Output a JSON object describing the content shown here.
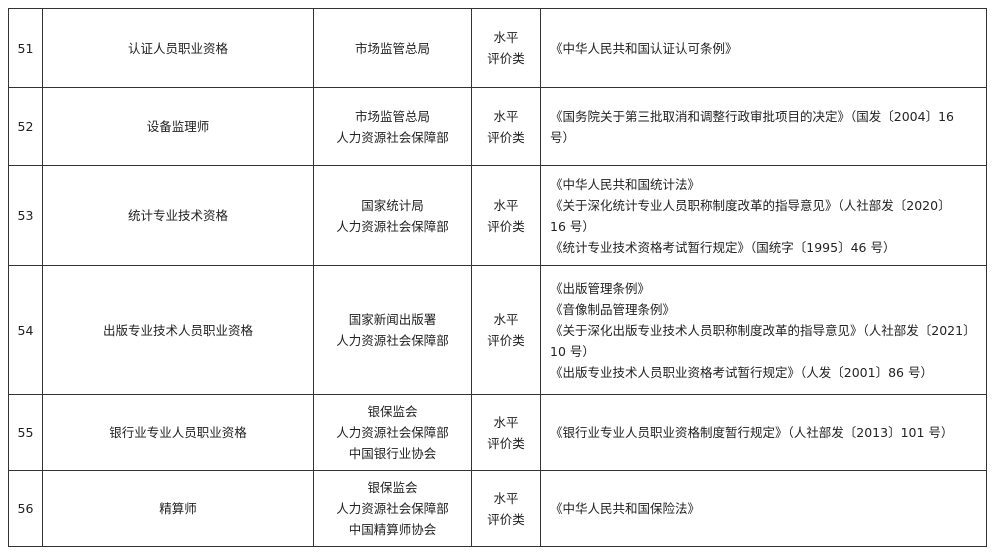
{
  "table": {
    "rows": [
      {
        "number": "51",
        "name": [
          "认证人员职业资格"
        ],
        "department": [
          "市场监管总局"
        ],
        "category": [
          "水平",
          "评价类"
        ],
        "basis": [
          "《中华人民共和国认证认可条例》"
        ]
      },
      {
        "number": "52",
        "name": [
          "设备监理师"
        ],
        "department": [
          "市场监管总局",
          "人力资源社会保障部"
        ],
        "category": [
          "水平",
          "评价类"
        ],
        "basis": [
          "《国务院关于第三批取消和调整行政审批项目的决定》（国发〔2004〕16",
          "号）"
        ]
      },
      {
        "number": "53",
        "name": [
          "统计专业技术资格"
        ],
        "department": [
          "国家统计局",
          "人力资源社会保障部"
        ],
        "category": [
          "水平",
          "评价类"
        ],
        "basis": [
          "《中华人民共和国统计法》",
          "《关于深化统计专业人员职称制度改革的指导意见》（人社部发〔2020〕",
          "16 号）",
          "《统计专业技术资格考试暂行规定》（国统字〔1995〕46 号）"
        ]
      },
      {
        "number": "54",
        "name": [
          "出版专业技术人员职业资格"
        ],
        "department": [
          "国家新闻出版署",
          "人力资源社会保障部"
        ],
        "category": [
          "水平",
          "评价类"
        ],
        "basis": [
          "《出版管理条例》",
          "《音像制品管理条例》",
          "《关于深化出版专业技术人员职称制度改革的指导意见》（人社部发〔2021〕",
          "10 号）",
          "《出版专业技术人员职业资格考试暂行规定》（人发〔2001〕86 号）"
        ]
      },
      {
        "number": "55",
        "name": [
          "银行业专业人员职业资格"
        ],
        "department": [
          "银保监会",
          "人力资源社会保障部",
          "中国银行业协会"
        ],
        "category": [
          "水平",
          "评价类"
        ],
        "basis": [
          "《银行业专业人员职业资格制度暂行规定》（人社部发〔2013〕101 号）"
        ]
      },
      {
        "number": "56",
        "name": [
          "精算师"
        ],
        "department": [
          "银保监会",
          "人力资源社会保障部",
          "中国精算师协会"
        ],
        "category": [
          "水平",
          "评价类"
        ],
        "basis": [
          "《中华人民共和国保险法》"
        ]
      }
    ]
  }
}
